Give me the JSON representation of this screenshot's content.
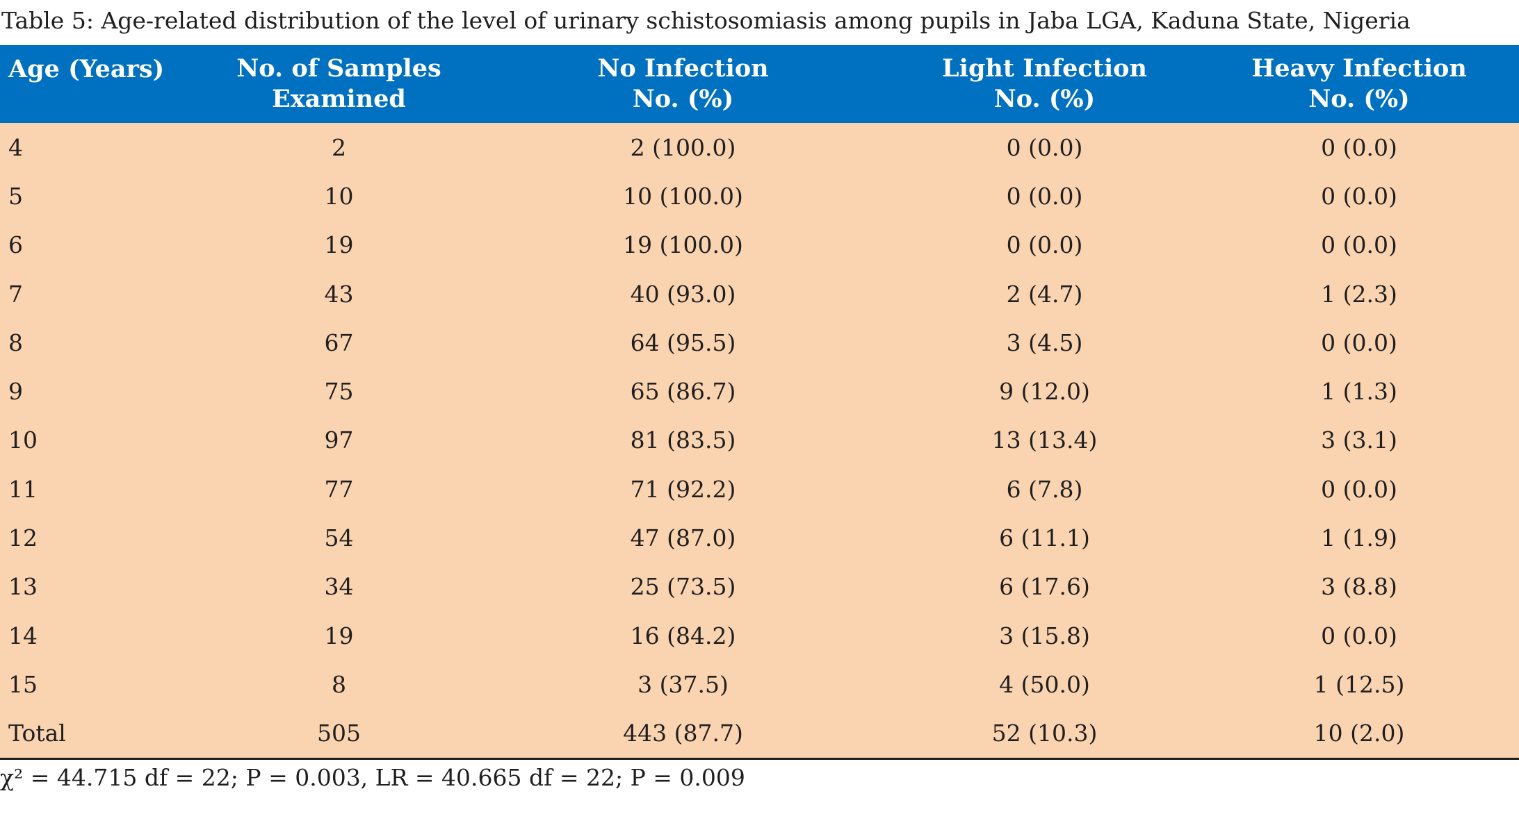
{
  "caption": "Table 5: Age-related distribution of the level of urinary schistosomiasis among pupils in Jaba LGA, Kaduna State, Nigeria",
  "header": {
    "age": "Age (Years)",
    "samples_line1": "No. of Samples",
    "samples_line2": "Examined",
    "no_infection_line1": "No Infection",
    "no_infection_line2": "No. (%)",
    "light_line1": "Light Infection",
    "light_line2": "No. (%)",
    "heavy_line1": "Heavy Infection",
    "heavy_line2": "No. (%)"
  },
  "rows": [
    {
      "age": "4",
      "samples": "2",
      "no_infection": "2 (100.0)",
      "light": "0 (0.0)",
      "heavy": "0 (0.0)"
    },
    {
      "age": "5",
      "samples": "10",
      "no_infection": "10 (100.0)",
      "light": "0 (0.0)",
      "heavy": "0 (0.0)"
    },
    {
      "age": "6",
      "samples": "19",
      "no_infection": "19 (100.0)",
      "light": "0 (0.0)",
      "heavy": "0 (0.0)"
    },
    {
      "age": "7",
      "samples": "43",
      "no_infection": "40 (93.0)",
      "light": "2 (4.7)",
      "heavy": "1 (2.3)"
    },
    {
      "age": "8",
      "samples": "67",
      "no_infection": "64 (95.5)",
      "light": "3 (4.5)",
      "heavy": "0 (0.0)"
    },
    {
      "age": "9",
      "samples": "75",
      "no_infection": "65 (86.7)",
      "light": "9 (12.0)",
      "heavy": "1 (1.3)"
    },
    {
      "age": "10",
      "samples": "97",
      "no_infection": "81 (83.5)",
      "light": "13 (13.4)",
      "heavy": "3 (3.1)"
    },
    {
      "age": "11",
      "samples": "77",
      "no_infection": "71 (92.2)",
      "light": "6 (7.8)",
      "heavy": "0 (0.0)"
    },
    {
      "age": "12",
      "samples": "54",
      "no_infection": "47 (87.0)",
      "light": "6 (11.1)",
      "heavy": "1 (1.9)"
    },
    {
      "age": "13",
      "samples": "34",
      "no_infection": "25 (73.5)",
      "light": "6 (17.6)",
      "heavy": "3 (8.8)"
    },
    {
      "age": "14",
      "samples": "19",
      "no_infection": "16 (84.2)",
      "light": "3 (15.8)",
      "heavy": "0 (0.0)"
    },
    {
      "age": "15",
      "samples": "8",
      "no_infection": "3 (37.5)",
      "light": "4 (50.0)",
      "heavy": "1 (12.5)"
    },
    {
      "age": "Total",
      "samples": "505",
      "no_infection": "443 (87.7)",
      "light": "52 (10.3)",
      "heavy": "10 (2.0)"
    }
  ],
  "footnote": "χ² = 44.715 df = 22; P = 0.003, LR = 40.665 df = 22; P = 0.009",
  "colors": {
    "header_bg": "#0070c0",
    "body_bg": "#fad3b1"
  }
}
